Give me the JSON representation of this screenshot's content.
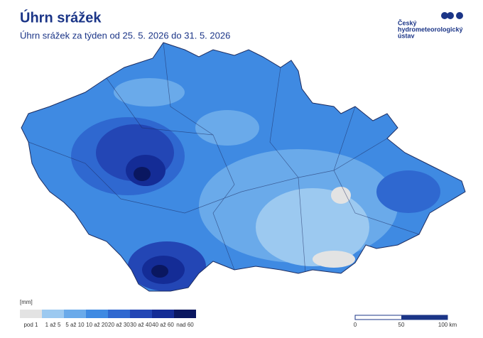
{
  "header": {
    "title": "Úhrn srážek",
    "subtitle": "Úhrn srážek za týden od 25. 5. 2026 do 31. 5. 2026"
  },
  "logo": {
    "lines": [
      "Český",
      "hydrometeorologický",
      "ústav"
    ]
  },
  "legend": {
    "unit": "[mm]",
    "items": [
      {
        "label": "pod 1",
        "color": "#e3e3e3"
      },
      {
        "label": "1 až 5",
        "color": "#9cc9f0"
      },
      {
        "label": "5 až 10",
        "color": "#6aaaea"
      },
      {
        "label": "10 až 20",
        "color": "#3f8ae2"
      },
      {
        "label": "20 až 30",
        "color": "#2f68d0"
      },
      {
        "label": "30 až 40",
        "color": "#2346b5"
      },
      {
        "label": "40 až 60",
        "color": "#142c96"
      },
      {
        "label": "nad 60",
        "color": "#0a1760"
      }
    ]
  },
  "scale_bar": {
    "labels": [
      "0",
      "50",
      "100 km"
    ]
  }
}
